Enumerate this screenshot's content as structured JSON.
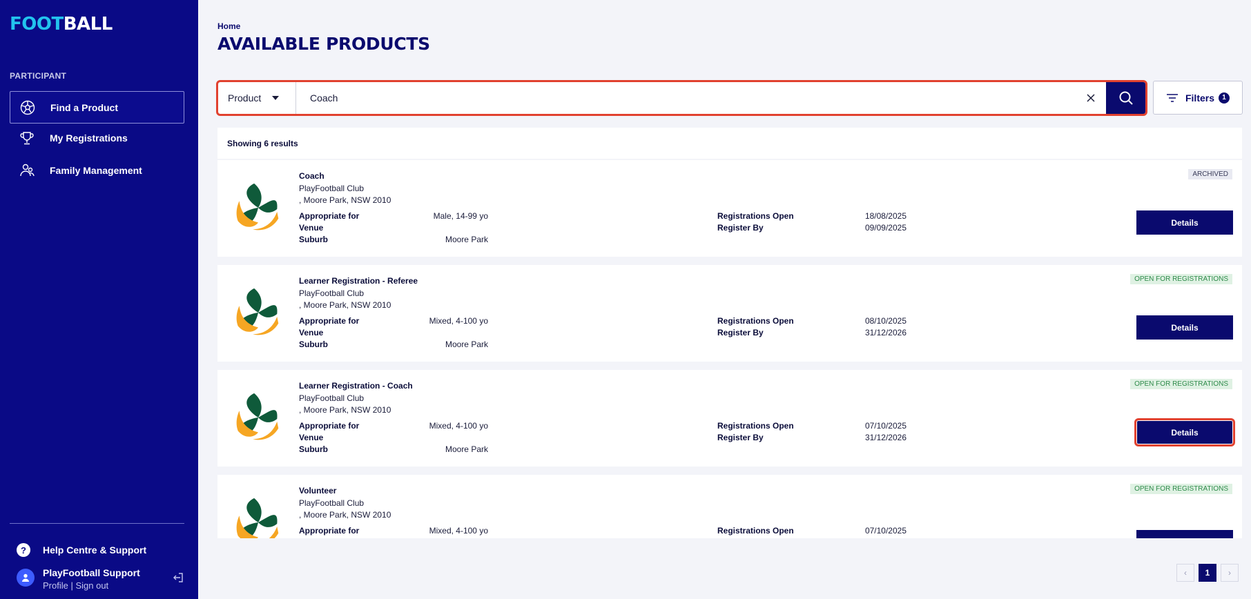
{
  "app": {
    "logo_a": "FOOT",
    "logo_b": "BALL"
  },
  "sidebar": {
    "section_label": "PARTICIPANT",
    "items": [
      {
        "label": "Find a Product",
        "icon": "soccer-ball-icon"
      },
      {
        "label": "My Registrations",
        "icon": "trophy-icon"
      },
      {
        "label": "Family Management",
        "icon": "family-icon"
      }
    ],
    "help_label": "Help Centre & Support",
    "user_name": "PlayFootball Support",
    "profile_link": "Profile",
    "link_separator": " | ",
    "signout_link": "Sign out"
  },
  "header": {
    "breadcrumb": "Home",
    "title": "AVAILABLE PRODUCTS"
  },
  "search": {
    "type_label": "Product",
    "query": "Coach"
  },
  "filters": {
    "label": "Filters",
    "count": "1"
  },
  "results": {
    "summary": "Showing 6 results"
  },
  "labels": {
    "appropriate_for": "Appropriate for",
    "venue": "Venue",
    "suburb": "Suburb",
    "registrations_open": "Registrations Open",
    "register_by": "Register By",
    "details": "Details"
  },
  "products": [
    {
      "title": "Coach",
      "org": "PlayFootball Club",
      "address": ", Moore Park, NSW 2010",
      "appropriate_for": "Male, 14-99 yo",
      "suburb": "Moore Park",
      "registrations_open": "18/08/2025",
      "register_by": "09/09/2025",
      "status": "ARCHIVED"
    },
    {
      "title": "Learner Registration - Referee",
      "org": "PlayFootball Club",
      "address": ", Moore Park, NSW 2010",
      "appropriate_for": "Mixed, 4-100 yo",
      "suburb": "Moore Park",
      "registrations_open": "08/10/2025",
      "register_by": "31/12/2026",
      "status": "OPEN FOR REGISTRATIONS"
    },
    {
      "title": "Learner Registration - Coach",
      "org": "PlayFootball Club",
      "address": ", Moore Park, NSW 2010",
      "appropriate_for": "Mixed, 4-100 yo",
      "suburb": "Moore Park",
      "registrations_open": "07/10/2025",
      "register_by": "31/12/2026",
      "status": "OPEN FOR REGISTRATIONS"
    },
    {
      "title": "Volunteer",
      "org": "PlayFootball Club",
      "address": ", Moore Park, NSW 2010",
      "appropriate_for": "Mixed, 4-100 yo",
      "suburb": "",
      "registrations_open": "07/10/2025",
      "register_by": "",
      "status": "OPEN FOR REGISTRATIONS"
    }
  ],
  "pagination": {
    "prev": "‹",
    "current": "1",
    "next": "›"
  },
  "colors": {
    "sidebar": "#0a0a86",
    "primary": "#0a0a6e",
    "highlight": "#e1412f",
    "logo_accent": "#22c3ee"
  }
}
